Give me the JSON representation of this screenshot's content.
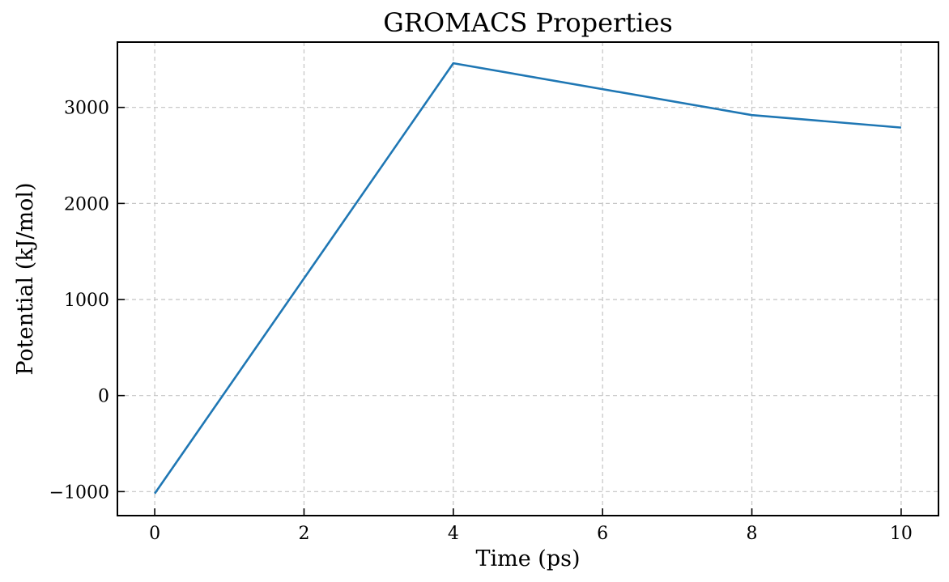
{
  "chart_data": {
    "type": "line",
    "title": "GROMACS Properties",
    "xlabel": "Time (ps)",
    "ylabel": "Potential (kJ/mol)",
    "xlim": [
      -0.5,
      10.5
    ],
    "ylim": [
      -1250,
      3680
    ],
    "xticks": [
      0,
      2,
      4,
      6,
      8,
      10
    ],
    "yticks": [
      -1000,
      0,
      1000,
      2000,
      3000
    ],
    "grid": true,
    "series": [
      {
        "color": "#1f77b4",
        "x": [
          0,
          4,
          8,
          10
        ],
        "y": [
          -1020,
          3460,
          2920,
          2790
        ]
      }
    ]
  }
}
